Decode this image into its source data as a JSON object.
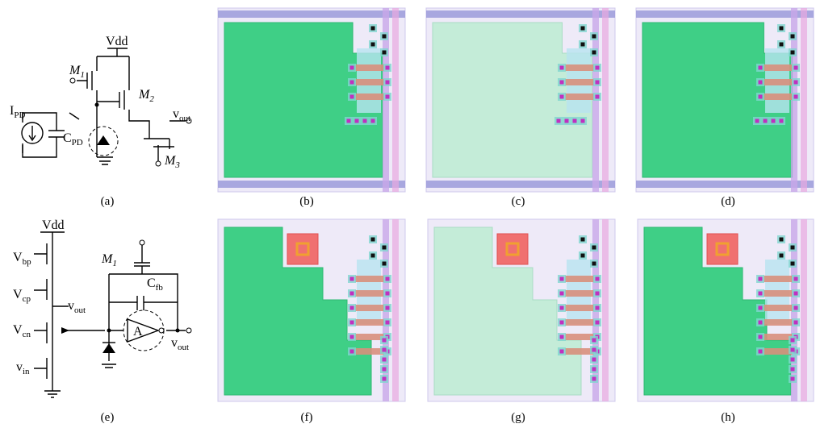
{
  "panel_labels": [
    "(a)",
    "(b)",
    "(c)",
    "(d)",
    "(e)",
    "(f)",
    "(g)",
    "(h)"
  ],
  "schematic_a": {
    "vdd": "Vdd",
    "m1": {
      "main": "M",
      "sub": "1"
    },
    "m2": {
      "main": "M",
      "sub": "2"
    },
    "vout": {
      "main": "v",
      "sub": "out"
    },
    "m3": {
      "main": "M",
      "sub": "3"
    },
    "ipd": {
      "main": "I",
      "sub": "PD"
    },
    "cpd": {
      "main": "C",
      "sub": "PD"
    }
  },
  "schematic_e": {
    "vdd": "Vdd",
    "vbp": {
      "main": "V",
      "sub": "bp"
    },
    "vcp": {
      "main": "V",
      "sub": "cp"
    },
    "vout_left": {
      "main": "v",
      "sub": "out"
    },
    "vcn": {
      "main": "V",
      "sub": "cn"
    },
    "vin": {
      "main": "v",
      "sub": "in"
    },
    "m1": {
      "main": "M",
      "sub": "1"
    },
    "cfb": {
      "main": "C",
      "sub": "fb"
    },
    "amp": "A",
    "vout_right": {
      "main": "v",
      "sub": "out"
    }
  }
}
